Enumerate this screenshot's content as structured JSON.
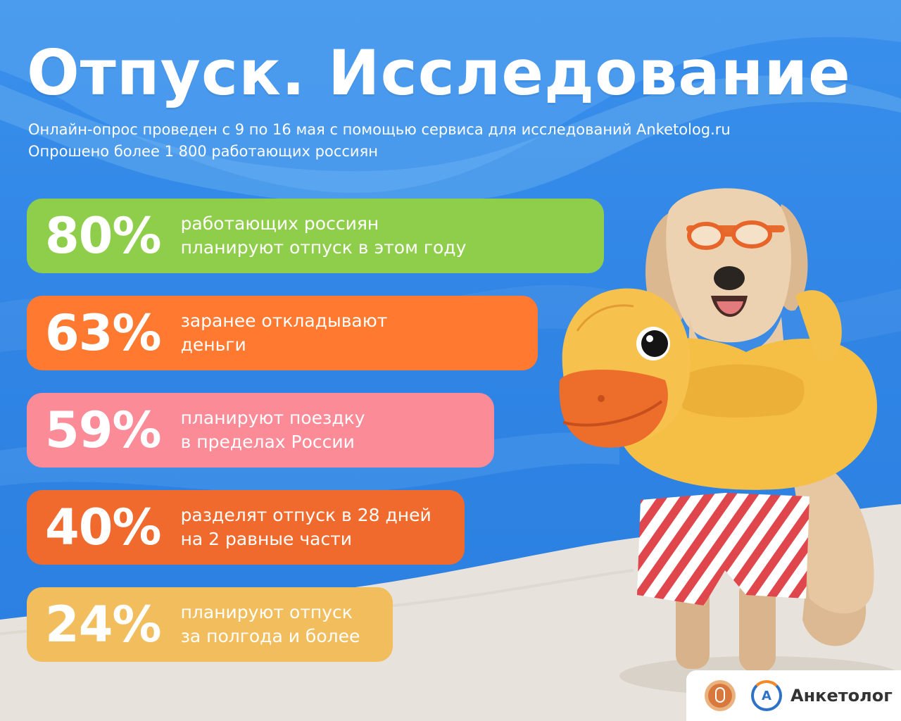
{
  "title": "Отпуск. Исследование",
  "subtitle": {
    "line1": "Онлайн-опрос проведен с 9 по 16 мая с помощью сервиса для исследований Anketolog.ru",
    "line2": "Опрошено более 1 800 работающих россиян"
  },
  "stats": [
    {
      "percent": "80%",
      "line1": "работающих россиян",
      "line2": "планируют отпуск в этом году",
      "value": 80,
      "color": "#8fce4a"
    },
    {
      "percent": "63%",
      "line1": "заранее откладывают",
      "line2": "деньги",
      "value": 63,
      "color": "#ff7a30"
    },
    {
      "percent": "59%",
      "line1": "планируют поездку",
      "line2": "в пределах России",
      "value": 59,
      "color": "#fc8b98"
    },
    {
      "percent": "40%",
      "line1": "разделят отпуск в 28 дней",
      "line2": "на 2 равные части",
      "value": 40,
      "color": "#f06a2e"
    },
    {
      "percent": "24%",
      "line1": "планируют отпуск",
      "line2": "за полгода и более",
      "value": 24,
      "color": "#f2bd5c"
    }
  ],
  "illustration": {
    "subject": "dog-in-duck-float-icon",
    "elements": [
      "goggles",
      "duck-ring",
      "striped-shorts"
    ]
  },
  "footer": {
    "brand": "Анкетолог",
    "brand_letter": "A",
    "icons": [
      "microphone-logo-icon",
      "anketolog-logo-icon"
    ]
  },
  "colors": {
    "sky": "#2f86e6",
    "sand": "#e8e4de",
    "text": "#ffffff"
  }
}
